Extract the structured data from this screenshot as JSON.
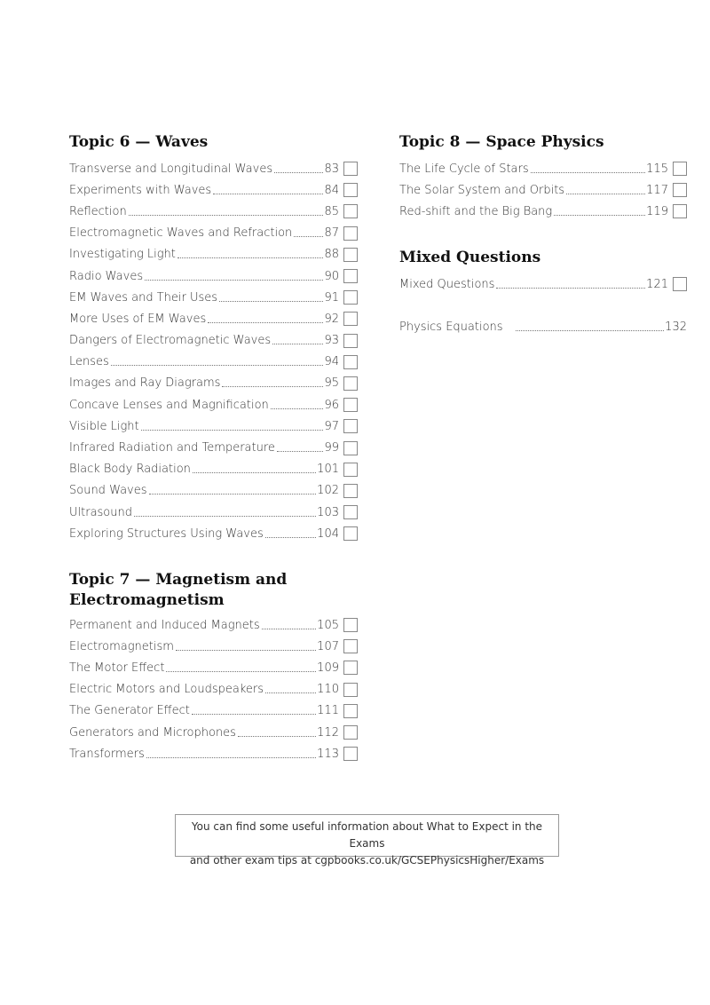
{
  "topic6": {
    "title": "Topic 6 — Waves",
    "items": [
      {
        "label": "Transverse and Longitudinal Waves",
        "page": "83"
      },
      {
        "label": "Experiments with Waves",
        "page": "84"
      },
      {
        "label": "Reflection",
        "page": "85"
      },
      {
        "label": "Electromagnetic Waves and Refraction",
        "page": "87"
      },
      {
        "label": "Investigating Light",
        "page": "88"
      },
      {
        "label": "Radio Waves",
        "page": "90"
      },
      {
        "label": "EM Waves and Their Uses",
        "page": "91"
      },
      {
        "label": "More Uses of EM Waves",
        "page": "92"
      },
      {
        "label": "Dangers of Electromagnetic Waves",
        "page": "93"
      },
      {
        "label": "Lenses",
        "page": "94"
      },
      {
        "label": "Images and Ray Diagrams",
        "page": "95"
      },
      {
        "label": "Concave Lenses and Magnification",
        "page": "96"
      },
      {
        "label": "Visible Light",
        "page": "97"
      },
      {
        "label": "Infrared Radiation and Temperature",
        "page": "99"
      },
      {
        "label": "Black Body Radiation",
        "page": "101"
      },
      {
        "label": "Sound Waves",
        "page": "102"
      },
      {
        "label": "Ultrasound",
        "page": "103"
      },
      {
        "label": "Exploring Structures Using Waves",
        "page": "104"
      }
    ]
  },
  "topic7": {
    "title_line1": "Topic 7 — Magnetism and",
    "title_line2": "Electromagnetism",
    "items": [
      {
        "label": "Permanent and Induced Magnets",
        "page": "105"
      },
      {
        "label": "Electromagnetism",
        "page": "107"
      },
      {
        "label": "The Motor Effect",
        "page": "109"
      },
      {
        "label": "Electric Motors and Loudspeakers",
        "page": "110"
      },
      {
        "label": "The Generator Effect",
        "page": "111"
      },
      {
        "label": "Generators and Microphones",
        "page": "112"
      },
      {
        "label": "Transformers",
        "page": "113"
      }
    ]
  },
  "topic8": {
    "title": "Topic 8 — Space Physics",
    "items": [
      {
        "label": "The Life Cycle of Stars",
        "page": "115"
      },
      {
        "label": "The Solar System and Orbits",
        "page": "117"
      },
      {
        "label": "Red-shift and the Big Bang",
        "page": "119"
      }
    ]
  },
  "mixed": {
    "title": "Mixed Questions",
    "items": [
      {
        "label": "Mixed Questions",
        "page": "121"
      }
    ]
  },
  "equations": {
    "label": "Physics Equations",
    "page": "132"
  },
  "note": {
    "line1": "You can find some useful information about What to Expect in the Exams",
    "line2": "and other exam tips at cgpbooks.co.uk/GCSEPhysicsHigher/Exams"
  }
}
